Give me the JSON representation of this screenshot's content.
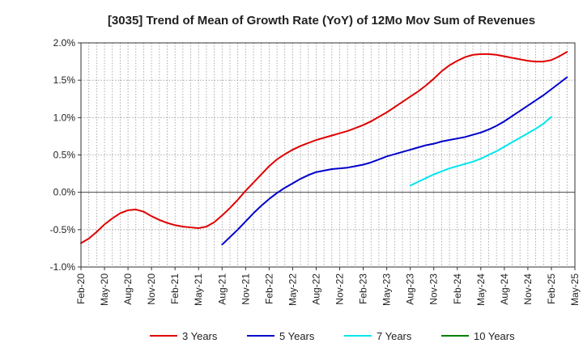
{
  "chart_data": {
    "type": "line",
    "title": "[3035]  Trend of Mean of Growth Rate (YoY) of 12Mo Mov Sum of Revenues",
    "xlabel": "",
    "ylabel": "",
    "x_ticks": [
      "Feb-20",
      "May-20",
      "Aug-20",
      "Nov-20",
      "Feb-21",
      "May-21",
      "Aug-21",
      "Nov-21",
      "Feb-22",
      "May-22",
      "Aug-22",
      "Nov-22",
      "Feb-23",
      "May-23",
      "Aug-23",
      "Nov-23",
      "Feb-24",
      "May-24",
      "Aug-24",
      "Nov-24",
      "Feb-25",
      "May-25"
    ],
    "y_ticks": [
      "2.0%",
      "1.5%",
      "1.0%",
      "0.5%",
      "0.0%",
      "-0.5%",
      "-1.0%"
    ],
    "y_tick_values": [
      2.0,
      1.5,
      1.0,
      0.5,
      0.0,
      -0.5,
      -1.0
    ],
    "ylim": [
      -1.0,
      2.0
    ],
    "x_range_months": [
      0,
      63
    ],
    "grid": true,
    "legend_position": "bottom",
    "series": [
      {
        "name": "3 Years",
        "color": "#e00000",
        "start_month": 0,
        "values": [
          -0.68,
          -0.62,
          -0.53,
          -0.43,
          -0.35,
          -0.28,
          -0.24,
          -0.23,
          -0.26,
          -0.32,
          -0.37,
          -0.41,
          -0.44,
          -0.46,
          -0.47,
          -0.48,
          -0.46,
          -0.4,
          -0.31,
          -0.21,
          -0.1,
          0.02,
          0.13,
          0.24,
          0.35,
          0.44,
          0.51,
          0.57,
          0.62,
          0.66,
          0.7,
          0.73,
          0.76,
          0.79,
          0.82,
          0.86,
          0.9,
          0.95,
          1.01,
          1.07,
          1.14,
          1.21,
          1.28,
          1.35,
          1.43,
          1.52,
          1.62,
          1.7,
          1.76,
          1.81,
          1.84,
          1.85,
          1.85,
          1.84,
          1.82,
          1.8,
          1.78,
          1.76,
          1.75,
          1.75,
          1.77,
          1.82,
          1.88
        ]
      },
      {
        "name": "5 Years",
        "color": "#0000cc",
        "start_month": 18,
        "values": [
          -0.7,
          -0.6,
          -0.5,
          -0.39,
          -0.28,
          -0.18,
          -0.09,
          -0.01,
          0.06,
          0.12,
          0.18,
          0.23,
          0.27,
          0.29,
          0.31,
          0.32,
          0.33,
          0.35,
          0.37,
          0.4,
          0.44,
          0.48,
          0.51,
          0.54,
          0.57,
          0.6,
          0.63,
          0.65,
          0.68,
          0.7,
          0.72,
          0.74,
          0.77,
          0.8,
          0.84,
          0.89,
          0.95,
          1.02,
          1.09,
          1.16,
          1.23,
          1.3,
          1.38,
          1.46,
          1.54
        ]
      },
      {
        "name": "7 Years",
        "color": "#00e5ee",
        "start_month": 42,
        "values": [
          0.09,
          0.14,
          0.19,
          0.24,
          0.28,
          0.32,
          0.35,
          0.38,
          0.41,
          0.45,
          0.5,
          0.55,
          0.61,
          0.67,
          0.73,
          0.79,
          0.85,
          0.92,
          1.01
        ]
      },
      {
        "name": "10 Years",
        "color": "#008000",
        "start_month": 0,
        "values": []
      }
    ]
  }
}
